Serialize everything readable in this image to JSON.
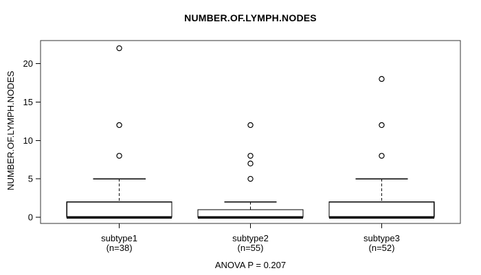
{
  "chart_data": {
    "type": "boxplot",
    "title": "NUMBER.OF.LYMPH.NODES",
    "ylabel": "NUMBER.OF.LYMPH.NODES",
    "annotation": "ANOVA P = 0.207",
    "yticks": [
      0,
      5,
      10,
      15,
      20
    ],
    "ylim": [
      -0.8,
      23.0
    ],
    "xlim": [
      0.4,
      3.6
    ],
    "grid": false,
    "line_color": "#000000",
    "box_fill": "#ffffff",
    "border_color": "#333333",
    "groups": [
      {
        "label": "subtype1",
        "sublabel": "(n=38)",
        "n": 38,
        "q1": 0,
        "median": 0,
        "q3": 2,
        "whisker_low": 0,
        "whisker_high": 5,
        "outliers": [
          8,
          12,
          22
        ]
      },
      {
        "label": "subtype2",
        "sublabel": "(n=55)",
        "n": 55,
        "q1": 0,
        "median": 0,
        "q3": 1,
        "whisker_low": 0,
        "whisker_high": 2,
        "outliers": [
          5,
          7,
          8,
          12
        ]
      },
      {
        "label": "subtype3",
        "sublabel": "(n=52)",
        "n": 52,
        "q1": 0,
        "median": 0,
        "q3": 2,
        "whisker_low": 0,
        "whisker_high": 5,
        "outliers": [
          8,
          12,
          18
        ]
      }
    ]
  }
}
